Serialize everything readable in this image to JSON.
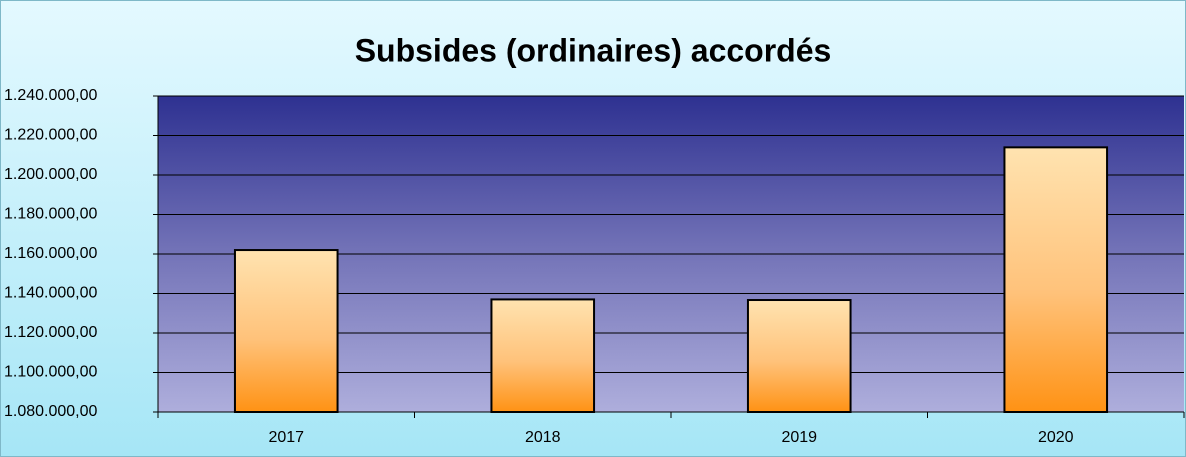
{
  "chart_data": {
    "type": "bar",
    "title": "Subsides (ordinaires) accordés",
    "categories": [
      "2017",
      "2018",
      "2019",
      "2020"
    ],
    "values": [
      1162000,
      1137000,
      1136700,
      1214000
    ],
    "color": "#ff9a2a",
    "ylim": [
      1080000,
      1240000
    ],
    "yticks": [
      {
        "value": 1080000,
        "label": "1.080.000,00"
      },
      {
        "value": 1100000,
        "label": "1.100.000,00"
      },
      {
        "value": 1120000,
        "label": "1.120.000,00"
      },
      {
        "value": 1140000,
        "label": "1.140.000,00"
      },
      {
        "value": 1160000,
        "label": "1.160.000,00"
      },
      {
        "value": 1180000,
        "label": "1.180.000,00"
      },
      {
        "value": 1200000,
        "label": "1.200.000,00"
      },
      {
        "value": 1220000,
        "label": "1.220.000,00"
      },
      {
        "value": 1240000,
        "label": "1.240.000,00"
      }
    ],
    "grid": true
  }
}
